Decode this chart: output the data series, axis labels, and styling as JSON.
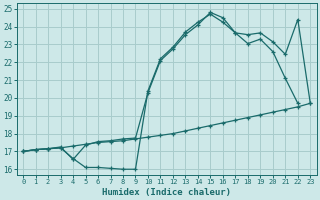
{
  "bg_color": "#cde8e8",
  "grid_color": "#a8cccc",
  "line_color": "#1a6b6b",
  "xlabel": "Humidex (Indice chaleur)",
  "xlim": [
    -0.5,
    23.5
  ],
  "ylim": [
    15.7,
    25.3
  ],
  "xticks": [
    0,
    1,
    2,
    3,
    4,
    5,
    6,
    7,
    8,
    9,
    10,
    11,
    12,
    13,
    14,
    15,
    16,
    17,
    18,
    19,
    20,
    21,
    22,
    23
  ],
  "yticks": [
    16,
    17,
    18,
    19,
    20,
    21,
    22,
    23,
    24,
    25
  ],
  "line1_x": [
    0,
    1,
    2,
    3,
    4,
    5,
    6,
    7,
    8,
    9,
    10,
    11,
    12,
    13,
    14,
    15,
    16,
    17,
    18,
    19,
    20,
    21,
    22,
    23
  ],
  "line1_y": [
    17.0,
    17.1,
    17.15,
    17.2,
    17.3,
    17.4,
    17.5,
    17.55,
    17.6,
    17.7,
    17.8,
    17.9,
    18.0,
    18.15,
    18.3,
    18.45,
    18.6,
    18.75,
    18.9,
    19.05,
    19.2,
    19.35,
    19.5,
    19.7
  ],
  "line2_x": [
    0,
    1,
    2,
    3,
    4,
    5,
    6,
    7,
    8,
    9,
    10,
    11,
    12,
    13,
    14,
    15,
    16,
    17,
    18,
    19,
    20,
    21,
    22
  ],
  "line2_y": [
    17.0,
    17.1,
    17.15,
    17.2,
    16.6,
    16.1,
    16.1,
    16.05,
    16.0,
    16.0,
    20.4,
    22.2,
    22.85,
    23.7,
    24.25,
    24.7,
    24.25,
    23.65,
    23.05,
    23.3,
    22.6,
    21.1,
    19.7
  ],
  "line3_x": [
    0,
    1,
    2,
    3,
    4,
    5,
    6,
    7,
    8,
    9,
    10,
    11,
    12,
    13,
    14,
    15,
    16,
    17,
    18,
    19,
    20,
    21,
    22,
    23
  ],
  "line3_y": [
    17.0,
    17.1,
    17.15,
    17.25,
    16.55,
    17.35,
    17.55,
    17.6,
    17.7,
    17.75,
    20.3,
    22.1,
    22.75,
    23.55,
    24.1,
    24.8,
    24.5,
    23.65,
    23.55,
    23.65,
    23.15,
    22.45,
    24.4,
    19.7
  ]
}
